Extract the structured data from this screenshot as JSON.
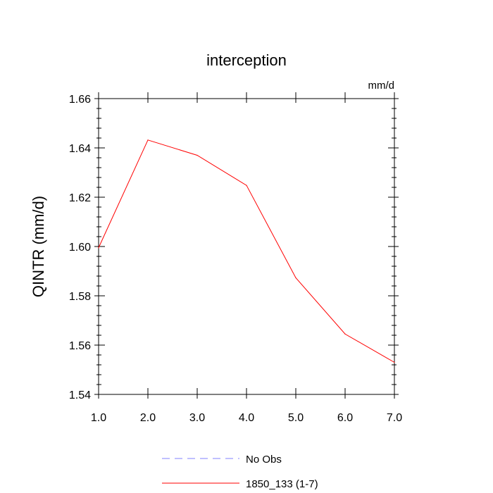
{
  "chart_data": {
    "type": "line",
    "title": "interception",
    "units": "mm/d",
    "xlabel": "",
    "ylabel": "QINTR  (mm/d)",
    "xlim": [
      1.0,
      7.0
    ],
    "ylim": [
      1.54,
      1.66
    ],
    "x_ticks": [
      "1.0",
      "2.0",
      "3.0",
      "4.0",
      "5.0",
      "6.0",
      "7.0"
    ],
    "y_ticks": [
      "1.54",
      "1.56",
      "1.58",
      "1.60",
      "1.62",
      "1.64",
      "1.66"
    ],
    "x": [
      1.0,
      2.0,
      3.0,
      4.0,
      5.0,
      6.0,
      7.0
    ],
    "series": [
      {
        "name": "1850_133 (1-7)",
        "color": "#ff0000",
        "style": "solid",
        "values": [
          1.5995,
          1.6432,
          1.637,
          1.6248,
          1.5873,
          1.5645,
          1.553
        ]
      }
    ],
    "legend": [
      {
        "label": "No Obs",
        "color": "#8080ff",
        "style": "dashed"
      },
      {
        "label": "1850_133 (1-7)",
        "color": "#ff0000",
        "style": "solid"
      }
    ],
    "grid": false,
    "legend_position": "bottom-center"
  }
}
